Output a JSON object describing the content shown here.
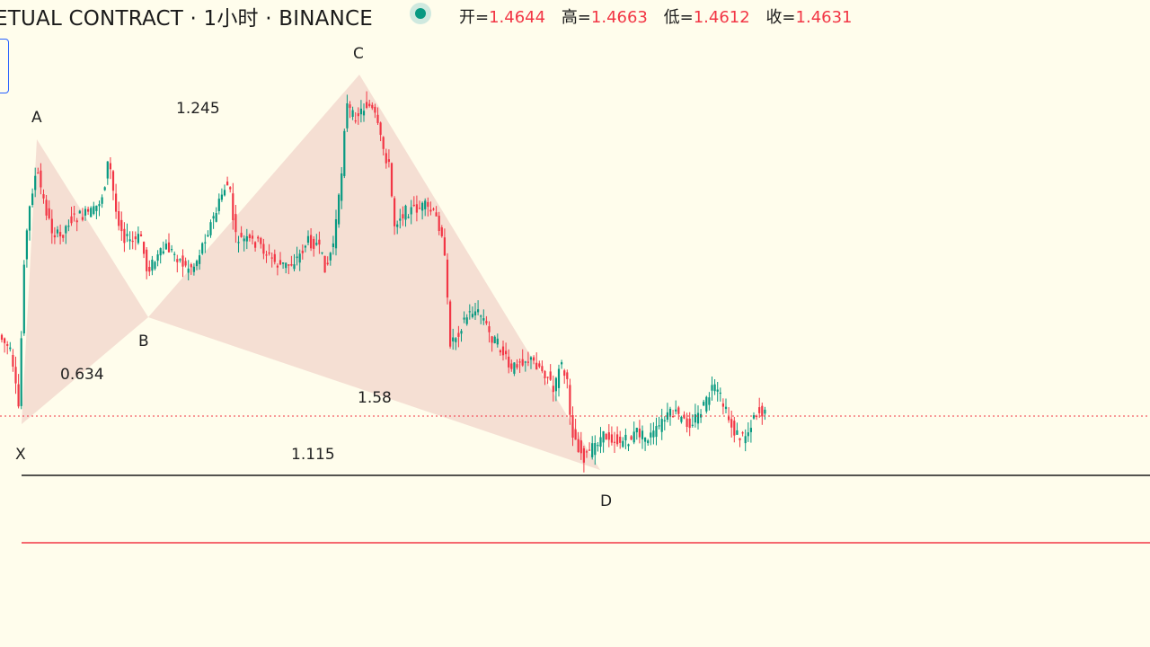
{
  "header": {
    "symbol_title": "ETUAL CONTRACT · 1小时 · BINANCE",
    "ohlc": {
      "open_label": "开=",
      "open": "1.4644",
      "high_label": "高=",
      "high": "1.4663",
      "low_label": "低=",
      "low": "1.4612",
      "close_label": "收=",
      "close": "1.4631"
    },
    "status": "live-dot-icon"
  },
  "pattern": {
    "points": {
      "x": "X",
      "a": "A",
      "b": "B",
      "c": "C",
      "d": "D"
    },
    "ratios": {
      "xb": "0.634",
      "ac": "1.245",
      "bd": "1.58",
      "xd": "1.115"
    },
    "fill_color": "#ecc6c0"
  },
  "colors": {
    "background": "#fffdec",
    "up": "#089981",
    "down": "#f23645",
    "level_line": "#1b1b1b",
    "stop_line": "#f23645",
    "price_line": "#f23645"
  }
}
